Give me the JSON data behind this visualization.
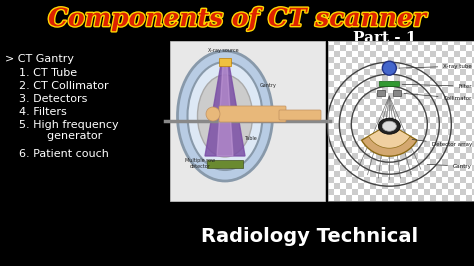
{
  "bg_color": "#000000",
  "title": "Components of CT scanner",
  "part_text": "Part - 1",
  "part_color": "#ffffff",
  "subtitle": "Radiology Technical",
  "subtitle_color": "#ffffff",
  "left_text_color": "#ffffff",
  "gantry_label": "> CT Gantry",
  "items": [
    "    1. CT Tube",
    "    2. CT Collimator",
    "    3. Detectors",
    "    4. Filters",
    "    5. High frequency",
    "            generator",
    "    6. Patient couch"
  ],
  "figsize": [
    4.74,
    2.66
  ],
  "dpi": 100
}
